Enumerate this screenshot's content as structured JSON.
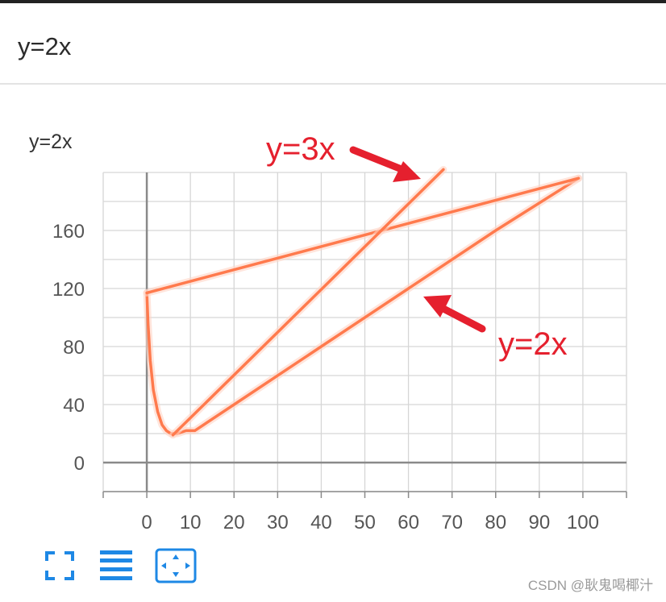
{
  "header": {
    "title": "y=2x"
  },
  "chart_data": {
    "type": "line",
    "title": "y=2x",
    "xlabel": "",
    "ylabel": "",
    "xlim": [
      -10,
      110
    ],
    "ylim": [
      -20,
      200
    ],
    "x_ticks": [
      0,
      10,
      20,
      30,
      40,
      50,
      60,
      70,
      80,
      90,
      100
    ],
    "y_ticks": [
      0,
      40,
      80,
      120,
      160
    ],
    "grid": true,
    "series": [
      {
        "x": [
          0,
          0.3,
          0.8,
          1.5,
          2.5,
          3.5,
          4.5,
          5.5,
          7,
          9,
          11,
          20,
          40,
          60,
          80,
          99
        ],
        "y": [
          117,
          95,
          70,
          50,
          35,
          26,
          22,
          20,
          20,
          22,
          22,
          40,
          80,
          120,
          160,
          196
        ],
        "color": "#ff7a4d"
      },
      {
        "x": [
          0,
          99
        ],
        "y": [
          117,
          196
        ],
        "color": "#ff7a4d"
      },
      {
        "x": [
          6,
          68
        ],
        "y": [
          19,
          202
        ],
        "color": "#ff7a4d"
      }
    ],
    "annotations": [
      {
        "text": "y=3x",
        "color": "#e5202e"
      },
      {
        "text": "y=2x",
        "color": "#e5202e"
      }
    ]
  },
  "toolbar": {
    "items": [
      {
        "icon": "fullscreen-icon"
      },
      {
        "icon": "list-icon"
      },
      {
        "icon": "fit-view-icon"
      }
    ],
    "color": "#1e88e5"
  },
  "watermark": "CSDN @耿鬼喝椰汁"
}
